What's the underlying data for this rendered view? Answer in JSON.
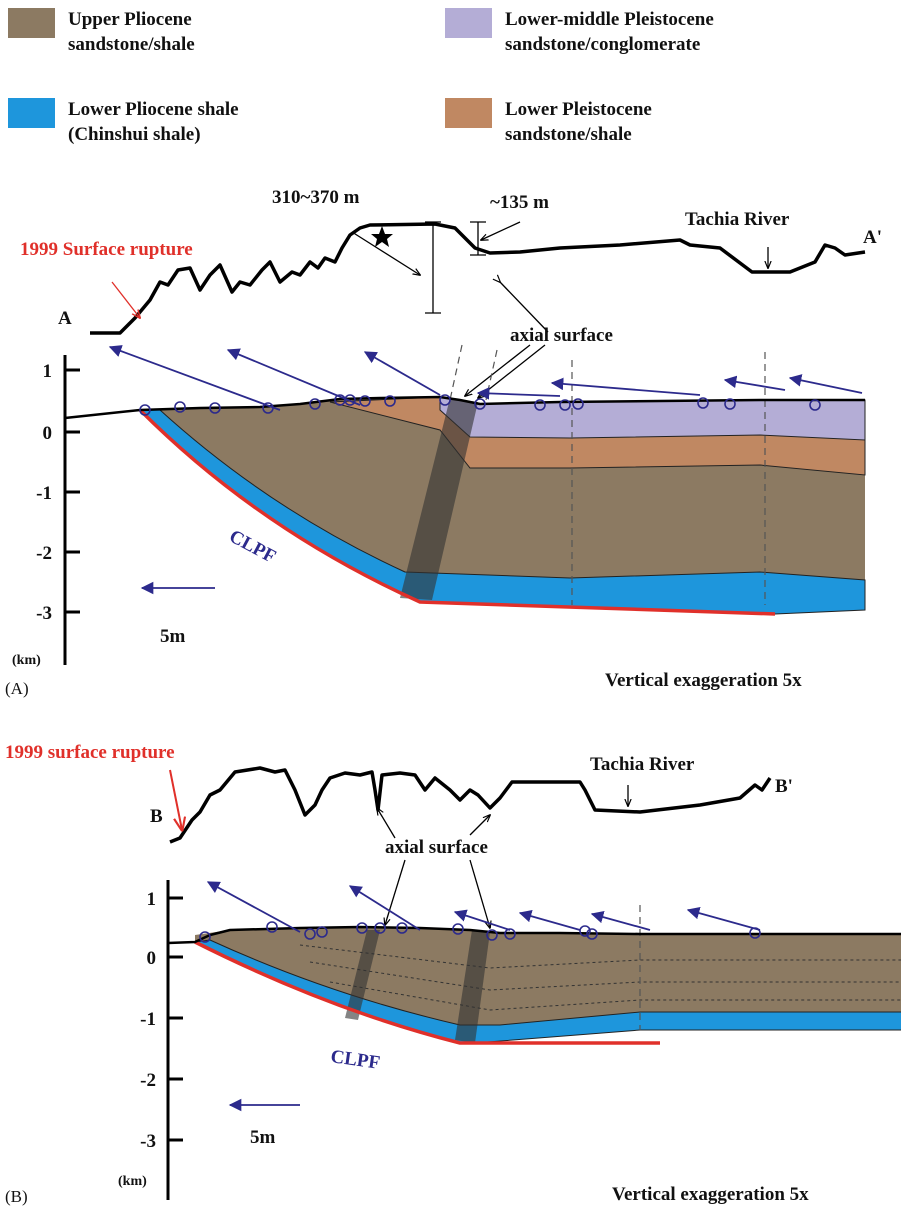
{
  "legend": [
    {
      "lines": [
        "Upper Pliocene",
        "sandstone/shale"
      ]
    },
    {
      "lines": [
        "Lower-middle Pleistocene",
        "sandstone/conglomerate"
      ]
    },
    {
      "lines": [
        "Lower Pliocene shale",
        "(Chinshui shale)"
      ]
    },
    {
      "lines": [
        "Lower Pleistocene",
        "sandstone/shale"
      ]
    }
  ],
  "panel_a": {
    "label": "(A)",
    "start": "A",
    "end": "A'",
    "rupture": "1999 Surface rupture",
    "relief_1": "310~370 m",
    "relief_2": "~135 m",
    "river": "Tachia River",
    "axial_surface": "axial surface",
    "fault": "CLPF",
    "scale": "5m",
    "y_ticks": [
      "1",
      "0",
      "-1",
      "-2",
      "-3"
    ],
    "y_unit": "(km)",
    "note": "Vertical exaggeration 5x"
  },
  "panel_b": {
    "label": "(B)",
    "start": "B",
    "end": "B'",
    "rupture": "1999 surface rupture",
    "river": "Tachia River",
    "axial_surface": "axial surface",
    "fault": "CLPF",
    "scale": "5m",
    "y_ticks": [
      "1",
      "0",
      "-1",
      "-2",
      "-3"
    ],
    "y_unit": "(km)",
    "note": "Vertical exaggeration 5x"
  }
}
